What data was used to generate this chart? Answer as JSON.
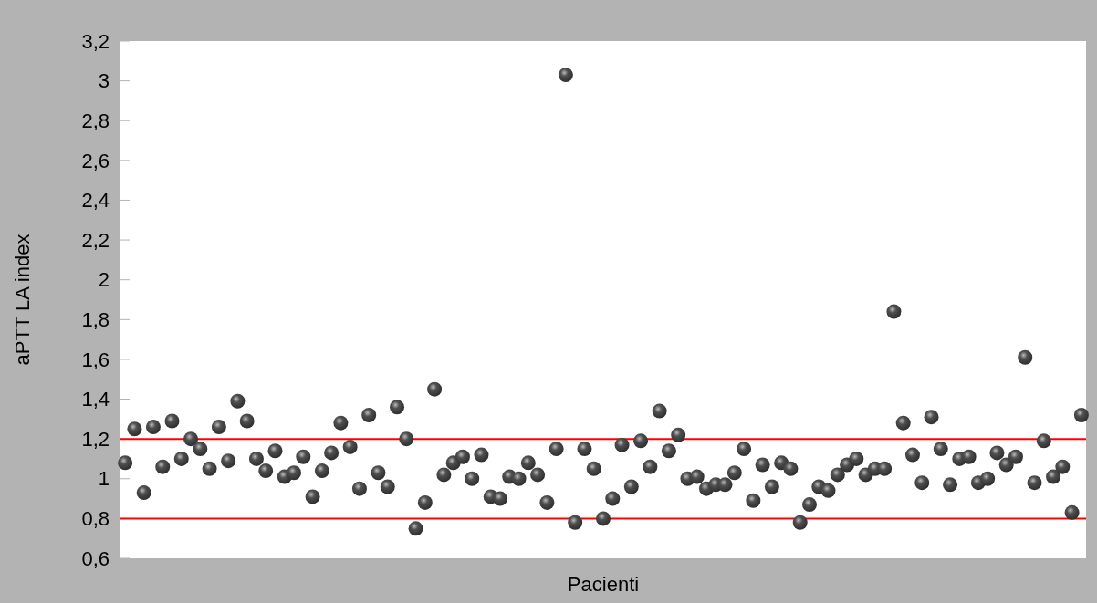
{
  "chart_data": {
    "type": "scatter",
    "xlabel": "Pacienti",
    "ylabel": "aPTT LA index",
    "categories": [
      null,
      null,
      null,
      null,
      null,
      null,
      null,
      null,
      null,
      null,
      null,
      null,
      null,
      null,
      null,
      null,
      null,
      null,
      null,
      null,
      null,
      null,
      null,
      null,
      null,
      null,
      null,
      null,
      null,
      null,
      null,
      null,
      null,
      null,
      null,
      null,
      null,
      null,
      null,
      null,
      null,
      null,
      null,
      null,
      null,
      null,
      null,
      null,
      null,
      null,
      null,
      null,
      null,
      null,
      null,
      null,
      null,
      null,
      null,
      null,
      null,
      null,
      null,
      null,
      null,
      null,
      null,
      null,
      null,
      null,
      null,
      null,
      null,
      null,
      null,
      null,
      null,
      null,
      null,
      null,
      null,
      null,
      null,
      null,
      null,
      null,
      null,
      null,
      null,
      null,
      null,
      null,
      null,
      null,
      null,
      null,
      null,
      null,
      null,
      null,
      null,
      null,
      null
    ],
    "series": [
      {
        "color": "#404040",
        "values": [
          1.08,
          1.25,
          0.93,
          1.26,
          1.06,
          1.29,
          1.1,
          1.2,
          1.15,
          1.05,
          1.26,
          1.09,
          1.39,
          1.29,
          1.1,
          1.04,
          1.14,
          1.01,
          1.03,
          1.11,
          0.91,
          1.04,
          1.13,
          1.28,
          1.16,
          0.95,
          1.32,
          1.03,
          0.96,
          1.36,
          1.2,
          0.75,
          0.88,
          1.45,
          1.02,
          1.08,
          1.11,
          1.0,
          1.12,
          0.91,
          0.9,
          1.01,
          1.0,
          1.08,
          1.02,
          0.88,
          1.15,
          3.03,
          0.78,
          1.15,
          1.05,
          0.8,
          0.9,
          1.17,
          0.96,
          1.19,
          1.06,
          1.34,
          1.14,
          1.22,
          1.0,
          1.01,
          0.95,
          0.97,
          0.97,
          1.03,
          1.15,
          0.89,
          1.07,
          0.96,
          1.08,
          1.05,
          0.78,
          0.87,
          0.96,
          0.94,
          1.02,
          1.07,
          1.1,
          1.02,
          1.05,
          1.05,
          1.84,
          1.28,
          1.12,
          0.98,
          1.31,
          1.15,
          0.97,
          1.1,
          1.11,
          0.98,
          1.0,
          1.13,
          1.07,
          1.11,
          1.61,
          0.98,
          1.19,
          1.01,
          1.06,
          0.83,
          1.32
        ]
      }
    ],
    "ylim": [
      0.6,
      3.2
    ],
    "yticks": [
      {
        "value": 0.6,
        "label": "0,6"
      },
      {
        "value": 0.8,
        "label": "0,8"
      },
      {
        "value": 1,
        "label": "1"
      },
      {
        "value": 1.2,
        "label": "1,2"
      },
      {
        "value": 1.4,
        "label": "1,4"
      },
      {
        "value": 1.6,
        "label": "1,6"
      },
      {
        "value": 1.8,
        "label": "1,8"
      },
      {
        "value": 2,
        "label": "2"
      },
      {
        "value": 2.2,
        "label": "2,2"
      },
      {
        "value": 2.4,
        "label": "2,4"
      },
      {
        "value": 2.6,
        "label": "2,6"
      },
      {
        "value": 2.8,
        "label": "2,8"
      },
      {
        "value": 3,
        "label": "3"
      },
      {
        "value": 3.2,
        "label": "3,2"
      }
    ],
    "ref_lines": [
      {
        "axis": "y",
        "value": 1.2,
        "color": "#ff0000"
      },
      {
        "axis": "y",
        "value": 0.8,
        "color": "#ff0000"
      }
    ],
    "marker": "circle",
    "grid": false
  }
}
